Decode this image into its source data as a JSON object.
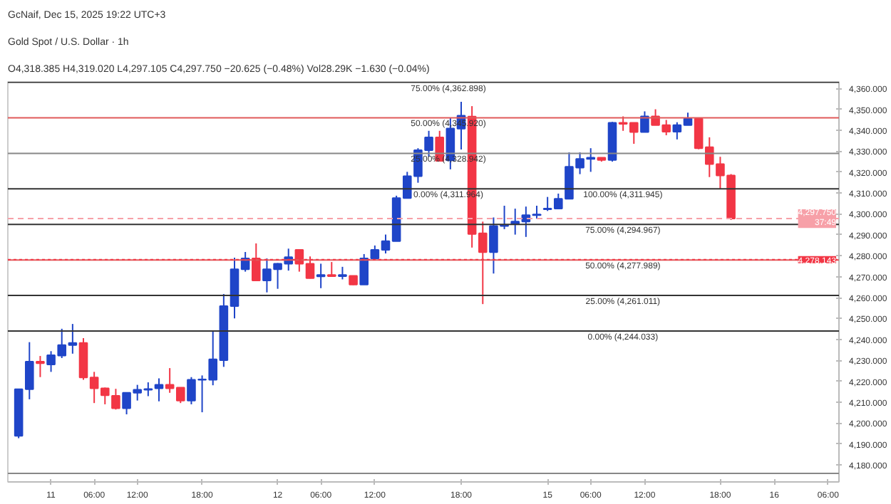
{
  "chart_data": {
    "type": "candlestick",
    "title": "Gold Spot / U.S. Dollar · 1h",
    "categories": [
      null,
      null,
      null,
      "11",
      null,
      null,
      null,
      "06:00",
      null,
      null,
      null,
      "12:00",
      null,
      null,
      null,
      null,
      null,
      "18:00",
      null,
      null,
      null,
      null,
      null,
      null,
      "12",
      null,
      null,
      null,
      "06:00",
      null,
      null,
      null,
      null,
      "12:00",
      null,
      null,
      null,
      null,
      null,
      null,
      null,
      "18:00",
      null,
      null,
      null,
      null,
      null,
      null,
      null,
      "15",
      null,
      null,
      null,
      "06:00",
      null,
      null,
      null,
      null,
      "12:00",
      null,
      null,
      null,
      null,
      null,
      null,
      "18:00",
      null,
      null,
      null,
      null,
      "16",
      null,
      null,
      null,
      null,
      "06:00"
    ],
    "ohlc": [
      [
        4193.9,
        4216.4,
        4192.8,
        4216.2
      ],
      [
        4216.2,
        4238.7,
        4211.4,
        4229.4
      ],
      [
        4229.4,
        4232.1,
        4222.0,
        4228.6
      ],
      [
        4228.0,
        4234.4,
        4224.5,
        4232.5
      ],
      [
        4232.3,
        4245.1,
        4231.1,
        4237.3
      ],
      [
        4237.3,
        4247.4,
        4233.2,
        4238.3
      ],
      [
        4238.3,
        4240.6,
        4220.7,
        4221.8
      ],
      [
        4221.8,
        4224.5,
        4209.6,
        4216.6
      ],
      [
        4216.6,
        4217.0,
        4209.0,
        4213.3
      ],
      [
        4213.1,
        4216.4,
        4206.5,
        4207.1
      ],
      [
        4207.1,
        4214.5,
        4204.2,
        4214.5
      ],
      [
        4214.5,
        4218.3,
        4210.8,
        4216.0
      ],
      [
        4216.0,
        4219.5,
        4212.9,
        4216.3
      ],
      [
        4216.6,
        4221.4,
        4210.4,
        4218.3
      ],
      [
        4218.3,
        4226.3,
        4214.5,
        4216.6
      ],
      [
        4217.0,
        4217.0,
        4209.6,
        4210.8
      ],
      [
        4210.8,
        4222.0,
        4209.0,
        4220.7
      ],
      [
        4220.7,
        4222.8,
        4205.2,
        4220.9
      ],
      [
        4220.7,
        4244.3,
        4218.1,
        4230.5
      ],
      [
        4230.1,
        4261.7,
        4226.9,
        4255.9
      ],
      [
        4255.9,
        4279.1,
        4250.1,
        4273.5
      ],
      [
        4273.5,
        4281.8,
        4272.4,
        4278.7
      ],
      [
        4278.7,
        4285.9,
        4267.9,
        4268.2
      ],
      [
        4268.2,
        4278.7,
        4262.5,
        4273.5
      ],
      [
        4273.5,
        4276.5,
        4264.2,
        4276.2
      ],
      [
        4276.2,
        4283.4,
        4272.9,
        4279.3
      ],
      [
        4282.8,
        4282.8,
        4272.4,
        4276.2
      ],
      [
        4276.2,
        4279.7,
        4269.1,
        4269.3
      ],
      [
        4270.1,
        4276.2,
        4264.5,
        4270.8
      ],
      [
        4270.8,
        4277.0,
        4269.9,
        4270.2
      ],
      [
        4270.2,
        4274.7,
        4268.7,
        4270.8
      ],
      [
        4270.4,
        4270.4,
        4266.0,
        4266.2
      ],
      [
        4266.2,
        4280.8,
        4266.2,
        4278.7
      ],
      [
        4278.7,
        4284.9,
        4278.7,
        4282.8
      ],
      [
        4282.8,
        4290.1,
        4281.1,
        4287.0
      ],
      [
        4287.0,
        4308.7,
        4287.0,
        4307.6
      ],
      [
        4307.6,
        4320.1,
        4307.6,
        4318.0
      ],
      [
        4318.0,
        4331.4,
        4314.9,
        4330.4
      ],
      [
        4330.4,
        4339.7,
        4327.3,
        4336.6
      ],
      [
        4336.6,
        4339.7,
        4325.3,
        4325.3
      ],
      [
        4325.6,
        4345.9,
        4321.3,
        4340.8
      ],
      [
        4340.7,
        4353.6,
        4330.8,
        4346.9
      ],
      [
        4346.5,
        4351.5,
        4283.9,
        4290.4
      ],
      [
        4290.7,
        4296.3,
        4256.9,
        4281.7
      ],
      [
        4281.7,
        4298.3,
        4271.5,
        4294.2
      ],
      [
        4294.2,
        4303.9,
        4292.7,
        4294.6
      ],
      [
        4295.2,
        4302.5,
        4290.1,
        4296.3
      ],
      [
        4296.3,
        4303.5,
        4289.0,
        4299.4
      ],
      [
        4299.4,
        4303.9,
        4297.7,
        4299.7
      ],
      [
        4302.2,
        4308.1,
        4301.4,
        4302.5
      ],
      [
        4302.5,
        4309.7,
        4302.5,
        4307.2
      ],
      [
        4307.2,
        4329.4,
        4307.2,
        4322.5
      ],
      [
        4322.1,
        4329.4,
        4319.0,
        4326.3
      ],
      [
        4326.3,
        4331.4,
        4320.1,
        4326.9
      ],
      [
        4326.9,
        4326.9,
        4325.0,
        4325.8
      ],
      [
        4325.8,
        4344.0,
        4325.0,
        4343.5
      ],
      [
        4343.5,
        4346.6,
        4339.7,
        4343.0
      ],
      [
        4343.5,
        4343.5,
        4333.5,
        4339.1
      ],
      [
        4339.1,
        4349.0,
        4339.1,
        4346.6
      ],
      [
        4346.6,
        4350.0,
        4342.4,
        4342.4
      ],
      [
        4342.4,
        4344.9,
        4337.6,
        4339.3
      ],
      [
        4339.3,
        4343.8,
        4335.6,
        4342.4
      ],
      [
        4342.4,
        4348.4,
        4342.4,
        4345.5
      ],
      [
        4345.5,
        4346.1,
        4330.9,
        4331.4
      ],
      [
        4331.9,
        4336.6,
        4317.6,
        4323.8
      ],
      [
        4323.8,
        4327.3,
        4311.8,
        4318.4
      ],
      [
        4318.385,
        4319.02,
        4297.105,
        4297.75
      ],
      null,
      null,
      null,
      null,
      null,
      null,
      null,
      null,
      null
    ],
    "colors": [
      "#1f45c8",
      "#1f45c8",
      "#f23645",
      "#1f45c8",
      "#1f45c8",
      "#1f45c8",
      "#f23645",
      "#f23645",
      "#f23645",
      "#f23645",
      "#1f45c8",
      "#1f45c8",
      "#1f45c8",
      "#1f45c8",
      "#f23645",
      "#f23645",
      "#1f45c8",
      "#1f45c8",
      "#1f45c8",
      "#1f45c8",
      "#1f45c8",
      "#1f45c8",
      "#f23645",
      "#1f45c8",
      "#1f45c8",
      "#1f45c8",
      "#f23645",
      "#f23645",
      "#1f45c8",
      "#f23645",
      "#1f45c8",
      "#f23645",
      "#1f45c8",
      "#1f45c8",
      "#1f45c8",
      "#1f45c8",
      "#1f45c8",
      "#1f45c8",
      "#1f45c8",
      "#f23645",
      "#1f45c8",
      "#1f45c8",
      "#f23645",
      "#f23645",
      "#1f45c8",
      "#1f45c8",
      "#1f45c8",
      "#1f45c8",
      "#1f45c8",
      "#1f45c8",
      "#1f45c8",
      "#1f45c8",
      "#1f45c8",
      "#1f45c8",
      "#f23645",
      "#1f45c8",
      "#f23645",
      "#f23645",
      "#1f45c8",
      "#f23645",
      "#f23645",
      "#1f45c8",
      "#1f45c8",
      "#f23645",
      "#f23645",
      "#f23645",
      "#f23645",
      null,
      null,
      null,
      null,
      null,
      null,
      null,
      null,
      null
    ],
    "ylim": [
      4171.9,
      4363.1
    ],
    "yticks": [
      {
        "value": 4180,
        "label": "4,180.000"
      },
      {
        "value": 4190,
        "label": "4,190.000"
      },
      {
        "value": 4200,
        "label": "4,200.000"
      },
      {
        "value": 4210,
        "label": "4,210.000"
      },
      {
        "value": 4220,
        "label": "4,220.000"
      },
      {
        "value": 4230,
        "label": "4,230.000"
      },
      {
        "value": 4240,
        "label": "4,240.000"
      },
      {
        "value": 4250,
        "label": "4,250.000"
      },
      {
        "value": 4260,
        "label": "4,260.000"
      },
      {
        "value": 4270,
        "label": "4,270.000"
      },
      {
        "value": 4280,
        "label": "4,280.000"
      },
      {
        "value": 4290,
        "label": "4,290.000"
      },
      {
        "value": 4300,
        "label": "4,300.000"
      },
      {
        "value": 4310,
        "label": "4,310.000"
      },
      {
        "value": 4320,
        "label": "4,320.000"
      },
      {
        "value": 4330,
        "label": "4,330.000"
      },
      {
        "value": 4340,
        "label": "4,340.000"
      },
      {
        "value": 4350,
        "label": "4,350.000"
      },
      {
        "value": 4360,
        "label": "4,360.000"
      }
    ],
    "ref_lines": [
      {
        "axis": "y",
        "value": 4362.898,
        "color": "#333333"
      },
      {
        "axis": "y",
        "value": 4345.92,
        "color": "#e05a5a"
      },
      {
        "axis": "y",
        "value": 4328.942,
        "color": "#888888"
      },
      {
        "axis": "y",
        "value": 4311.964,
        "color": "#333333"
      },
      {
        "axis": "y",
        "value": 4294.967,
        "color": "#333333"
      },
      {
        "axis": "y",
        "value": 4277.989,
        "color": "#e05a5a"
      },
      {
        "axis": "y",
        "value": 4261.011,
        "color": "#333333"
      },
      {
        "axis": "y",
        "value": 4244.033,
        "color": "#333333"
      },
      {
        "axis": "y",
        "value": 4176,
        "color": "#888888"
      },
      {
        "axis": "y",
        "value": 4278.143,
        "color": "#f23645",
        "line_style": "dotted",
        "label": "4,278.143"
      },
      {
        "axis": "y",
        "value": 4297.75,
        "color": "#f7a0a8",
        "line_style": "dashed",
        "label": "4,297.750\n37:49"
      }
    ],
    "annotations": [
      "GcNaif, Dec 15, 2025 19:22 UTC+3",
      "O4,318.385 H4,319.020 L4,297.105 C4,297.750 −20.625 (−0.48%) Vol28.29K −1.630 (−0.04%)",
      {
        "text": "75.00% (4,362.898)",
        "y": 4362.898
      },
      {
        "text": "50.00% (4,345.920)",
        "y": 4345.92
      },
      {
        "text": "25.00% (4,328.942)",
        "y": 4328.942
      },
      {
        "text": "0.00% (4,311.964)",
        "y": 4311.964
      },
      {
        "text": "100.00% (4,311.945)",
        "y": 4311.945
      },
      {
        "text": "75.00% (4,294.967)",
        "y": 4294.967
      },
      {
        "text": "50.00% (4,277.989)",
        "y": 4277.989
      },
      {
        "text": "25.00% (4,261.011)",
        "y": 4261.011
      },
      {
        "text": "0.00% (4,244.033)",
        "y": 4244.033
      }
    ]
  }
}
